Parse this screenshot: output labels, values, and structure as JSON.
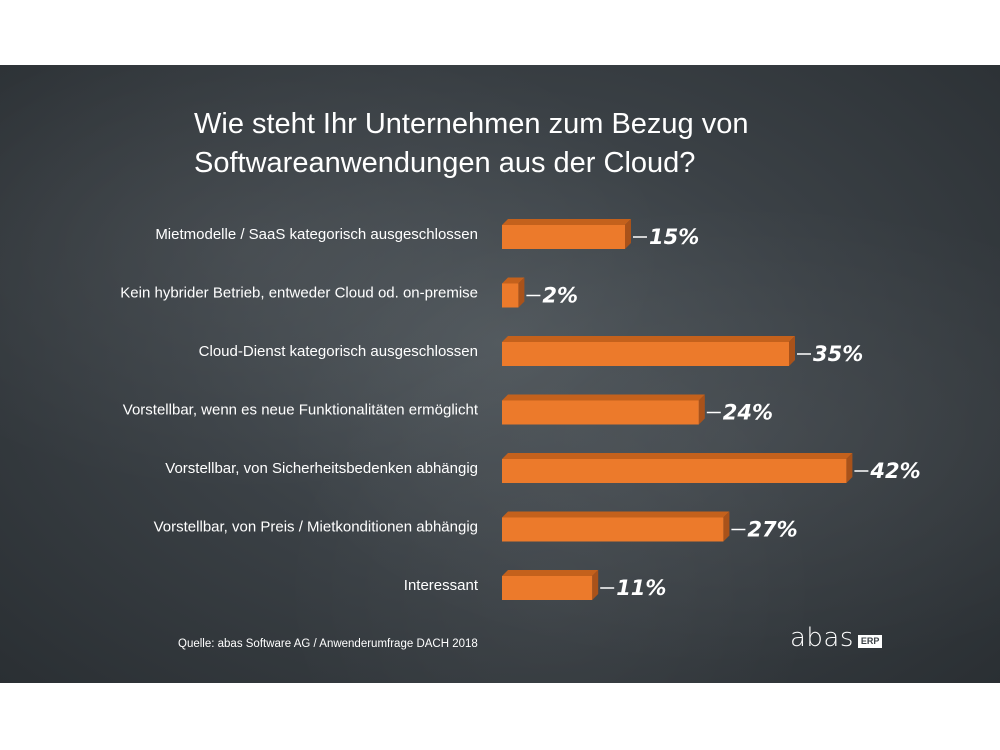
{
  "chart_data": {
    "type": "bar",
    "orientation": "horizontal",
    "title": "Wie steht Ihr Unternehmen zum Bezug von Softwareanwendungen aus der Cloud?",
    "categories": [
      "Mietmodelle / SaaS kategorisch ausgeschlossen",
      "Kein hybrider Betrieb, entweder Cloud od. on-premise",
      "Cloud-Dienst kategorisch ausgeschlossen",
      "Vorstellbar, wenn es neue Funktionalitäten ermöglicht",
      "Vorstellbar, von Sicherheitsbedenken abhängig",
      "Vorstellbar, von Preis / Mietkonditionen abhängig",
      "Interessant"
    ],
    "values": [
      15,
      2,
      35,
      24,
      42,
      27,
      11
    ],
    "value_labels": [
      "15%",
      "2%",
      "35%",
      "24%",
      "42%",
      "27%",
      "11%"
    ],
    "unit": "%",
    "bar_color": "#ec7a2b",
    "grid": false,
    "legend": "none"
  },
  "source": "Quelle: abas Software AG / Anwenderumfrage DACH 2018",
  "logo": {
    "word": "abas",
    "tag": "ERP"
  },
  "colors": {
    "background": "#3b4146",
    "bar": "#ec7a2b",
    "bar_shade": "#c4611c",
    "text": "#ffffff"
  }
}
